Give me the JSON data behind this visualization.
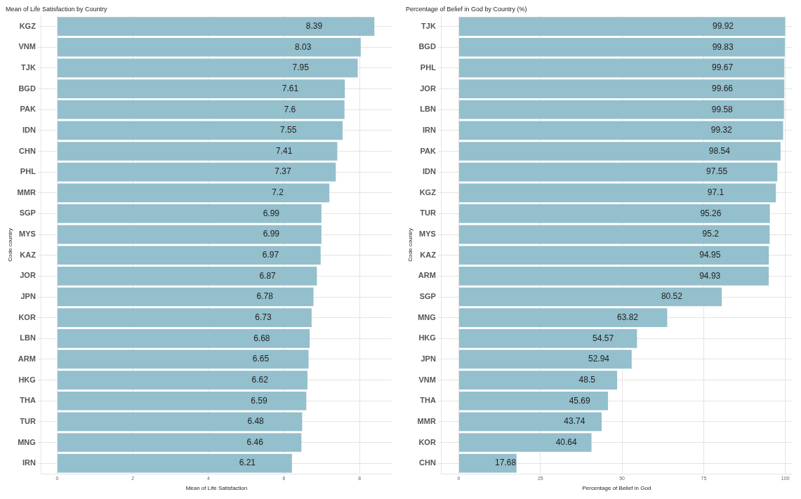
{
  "chart_data": [
    {
      "type": "bar",
      "orientation": "horizontal",
      "title": "Mean of Life Satisfaction by Country",
      "xlabel": "Mean of Life Satisfaction",
      "ylabel": "Code country",
      "categories": [
        "KGZ",
        "VNM",
        "TJK",
        "BGD",
        "PAK",
        "IDN",
        "CHN",
        "PHL",
        "MMR",
        "SGP",
        "MYS",
        "KAZ",
        "JOR",
        "JPN",
        "KOR",
        "LBN",
        "ARM",
        "HKG",
        "THA",
        "TUR",
        "MNG",
        "IRN"
      ],
      "values": [
        8.39,
        8.03,
        7.95,
        7.61,
        7.6,
        7.55,
        7.41,
        7.37,
        7.2,
        6.99,
        6.99,
        6.97,
        6.87,
        6.78,
        6.73,
        6.68,
        6.65,
        6.62,
        6.59,
        6.48,
        6.46,
        6.21
      ],
      "color": "#94bfcc",
      "xlim": [
        -0.42,
        8.85
      ],
      "xticks": [
        0,
        2,
        4,
        6,
        8
      ],
      "grid": true,
      "data_labels": true
    },
    {
      "type": "bar",
      "orientation": "horizontal",
      "title": "Percentage of Belief in God by Country (%)",
      "xlabel": "Percentage of Belief in God",
      "ylabel": "Code country",
      "categories": [
        "TJK",
        "BGD",
        "PHL",
        "JOR",
        "LBN",
        "IRN",
        "PAK",
        "IDN",
        "KGZ",
        "TUR",
        "MYS",
        "KAZ",
        "ARM",
        "SGP",
        "MNG",
        "HKG",
        "JPN",
        "VNM",
        "THA",
        "MMR",
        "KOR",
        "CHN"
      ],
      "values": [
        99.92,
        99.83,
        99.67,
        99.66,
        99.58,
        99.32,
        98.54,
        97.55,
        97.1,
        95.26,
        95.2,
        94.95,
        94.93,
        80.52,
        63.82,
        54.57,
        52.94,
        48.5,
        45.69,
        43.74,
        40.64,
        17.68
      ],
      "color": "#94bfcc",
      "xlim": [
        -5.3,
        102
      ],
      "xticks": [
        0,
        25,
        50,
        75,
        100
      ],
      "grid": true,
      "data_labels": true
    }
  ]
}
